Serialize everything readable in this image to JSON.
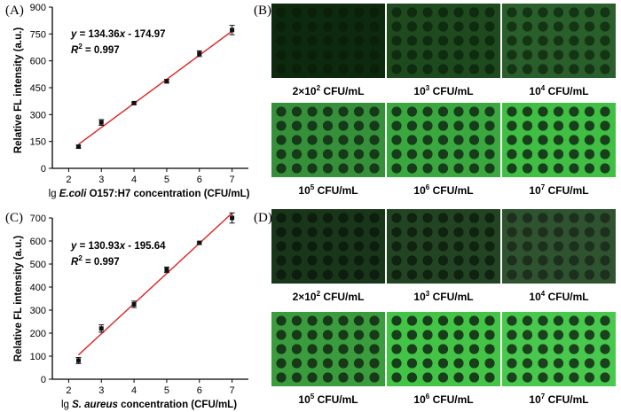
{
  "chart_data": [
    {
      "type": "scatter",
      "panel_label": "(A)",
      "equation_lhs": "y",
      "equation_rhs": " = 134.36",
      "equation_x": "x",
      "equation_tail": " - 174.97",
      "r2_label": "R",
      "r2_sup": "2",
      "r2_value": " = 0.997",
      "ylabel": "Relative FL intensity (a.u.)",
      "xlabel_prefix": "lg ",
      "xlabel_species": "E.coli",
      "xlabel_suffix": " O157:H7 concentration (CFU/mL)",
      "xlim": [
        1.5,
        7.5
      ],
      "ylim": [
        0,
        900
      ],
      "xticks": [
        2,
        3,
        4,
        5,
        6,
        7
      ],
      "yticks": [
        0,
        150,
        300,
        450,
        600,
        750,
        900
      ],
      "x": [
        2.3,
        3,
        4,
        5,
        6,
        7
      ],
      "y": [
        121,
        256,
        364,
        486,
        640,
        772
      ],
      "err": [
        8,
        16,
        5,
        10,
        16,
        26
      ],
      "fit": {
        "slope": 134.36,
        "intercept": -174.97,
        "x_start": 2.3,
        "x_end": 7
      }
    },
    {
      "type": "scatter",
      "panel_label": "(C)",
      "equation_lhs": "y",
      "equation_rhs": " = 130.93",
      "equation_x": "x",
      "equation_tail": " - 195.64",
      "r2_label": "R",
      "r2_sup": "2",
      "r2_value": " = 0.997",
      "ylabel": "Relative FL intensity (a.u.)",
      "xlabel_prefix": "lg ",
      "xlabel_species": "S. aureus",
      "xlabel_suffix": " concentration (CFU/mL)",
      "xlim": [
        1.5,
        7.5
      ],
      "ylim": [
        0,
        700
      ],
      "xticks": [
        2,
        3,
        4,
        5,
        6,
        7
      ],
      "yticks": [
        0,
        100,
        200,
        300,
        400,
        500,
        600,
        700
      ],
      "x": [
        2.3,
        3,
        4,
        5,
        6,
        7
      ],
      "y": [
        81,
        220,
        325,
        475,
        592,
        700
      ],
      "err": [
        13,
        16,
        14,
        12,
        4,
        22
      ],
      "fit": {
        "slope": 130.93,
        "intercept": -195.64,
        "x_start": 2.3,
        "x_end": 7
      }
    }
  ],
  "image_panels": [
    {
      "panel_label": "(B)",
      "images": [
        {
          "caption_prefix": "2×10",
          "caption_exp": "2",
          "caption_unit": " CFU/mL",
          "bg": "#0e2a0e",
          "dot": "#0a200a"
        },
        {
          "caption_prefix": "10",
          "caption_exp": "3",
          "caption_unit": " CFU/mL",
          "bg": "#1e4a1e",
          "dot": "#0f2c10"
        },
        {
          "caption_prefix": "10",
          "caption_exp": "4",
          "caption_unit": " CFU/mL",
          "bg": "#2a5e2a",
          "dot": "#133514"
        },
        {
          "caption_prefix": "10",
          "caption_exp": "5",
          "caption_unit": " CFU/mL",
          "bg": "#36903a",
          "dot": "#16391a"
        },
        {
          "caption_prefix": "10",
          "caption_exp": "6",
          "caption_unit": " CFU/mL",
          "bg": "#3aa83e",
          "dot": "#173c1b"
        },
        {
          "caption_prefix": "10",
          "caption_exp": "7",
          "caption_unit": " CFU/mL",
          "bg": "#40bf44",
          "dot": "#183e1c"
        }
      ]
    },
    {
      "panel_label": "(D)",
      "images": [
        {
          "caption_prefix": "2×10",
          "caption_exp": "2",
          "caption_unit": " CFU/mL",
          "bg": "#1a361a",
          "dot": "#0d1d0e"
        },
        {
          "caption_prefix": "10",
          "caption_exp": "3",
          "caption_unit": " CFU/mL",
          "bg": "#224422",
          "dot": "#0f2310"
        },
        {
          "caption_prefix": "10",
          "caption_exp": "4",
          "caption_unit": " CFU/mL",
          "bg": "#2f522f",
          "dot": "#1c301d"
        },
        {
          "caption_prefix": "10",
          "caption_exp": "5",
          "caption_unit": " CFU/mL",
          "bg": "#3a9c3c",
          "dot": "#17391a"
        },
        {
          "caption_prefix": "10",
          "caption_exp": "6",
          "caption_unit": " CFU/mL",
          "bg": "#44c447",
          "dot": "#183d1b"
        },
        {
          "caption_prefix": "10",
          "caption_exp": "7",
          "caption_unit": " CFU/mL",
          "bg": "#48c84c",
          "dot": "#1a401d"
        }
      ]
    }
  ]
}
